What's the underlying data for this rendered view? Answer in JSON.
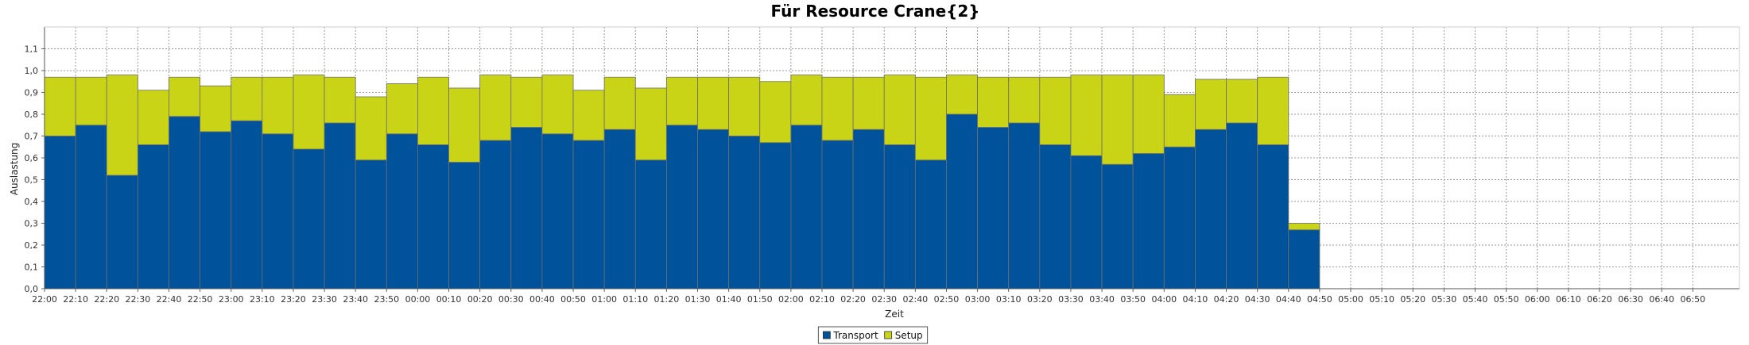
{
  "chart_data": {
    "type": "bar",
    "stacked": true,
    "title": "Für Resource Crane{2}",
    "xlabel": "Zeit",
    "ylabel": "Auslastung",
    "ylim": [
      0,
      1.2
    ],
    "yticks": [
      "0,0",
      "0,1",
      "0,2",
      "0,3",
      "0,4",
      "0,5",
      "0,6",
      "0,7",
      "0,8",
      "0,9",
      "1,0",
      "1,1"
    ],
    "grid": true,
    "legend_position": "bottom-center",
    "x_ticks": [
      "22:00",
      "22:10",
      "22:20",
      "22:30",
      "22:40",
      "22:50",
      "23:00",
      "23:10",
      "23:20",
      "23:30",
      "23:40",
      "23:50",
      "00:00",
      "00:10",
      "00:20",
      "00:30",
      "00:40",
      "00:50",
      "01:00",
      "01:10",
      "01:20",
      "01:30",
      "01:40",
      "01:50",
      "02:00",
      "02:10",
      "02:20",
      "02:30",
      "02:40",
      "02:50",
      "03:00",
      "03:10",
      "03:20",
      "03:30",
      "03:40",
      "03:50",
      "04:00",
      "04:10",
      "04:20",
      "04:30",
      "04:40",
      "04:50",
      "05:00",
      "05:10",
      "05:20",
      "05:30",
      "05:40",
      "05:50",
      "06:00",
      "06:10",
      "06:20",
      "06:30",
      "06:40",
      "06:50"
    ],
    "series": [
      {
        "name": "Transport",
        "color": "#00529b",
        "values": [
          0.7,
          0.75,
          0.52,
          0.66,
          0.79,
          0.72,
          0.77,
          0.71,
          0.64,
          0.76,
          0.59,
          0.71,
          0.66,
          0.58,
          0.68,
          0.74,
          0.71,
          0.68,
          0.73,
          0.59,
          0.75,
          0.73,
          0.7,
          0.67,
          0.75,
          0.68,
          0.73,
          0.66,
          0.59,
          0.8,
          0.74,
          0.76,
          0.66,
          0.61,
          0.57,
          0.62,
          0.65,
          0.73,
          0.76,
          0.66,
          0.27
        ]
      },
      {
        "name": "Setup",
        "color": "#c8d415",
        "values": [
          0.27,
          0.22,
          0.46,
          0.25,
          0.18,
          0.21,
          0.2,
          0.26,
          0.34,
          0.21,
          0.29,
          0.23,
          0.31,
          0.34,
          0.3,
          0.23,
          0.27,
          0.23,
          0.24,
          0.33,
          0.22,
          0.24,
          0.27,
          0.28,
          0.23,
          0.29,
          0.24,
          0.32,
          0.38,
          0.18,
          0.23,
          0.21,
          0.31,
          0.37,
          0.41,
          0.36,
          0.24,
          0.23,
          0.2,
          0.31,
          0.03
        ]
      }
    ]
  }
}
